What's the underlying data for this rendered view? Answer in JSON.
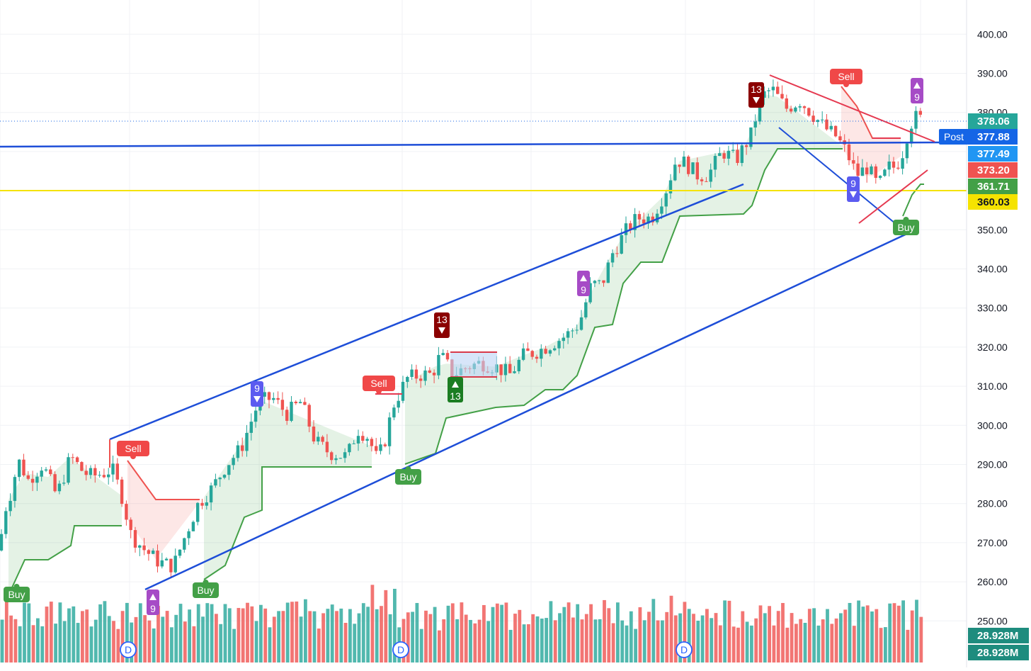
{
  "chart_data": {
    "type": "candlestick",
    "interval_label": "D",
    "colors": {
      "up": "#26a69a",
      "down": "#ef5350",
      "channel": "#1e4ed8",
      "support": "#f5e300",
      "trail_bull": "#43a047",
      "trail_bear": "#ef5350",
      "buy_label": "#43a047",
      "sell_label": "#f04848",
      "td9_up": "#5b5bf0",
      "td9_down": "#a64bc6",
      "td13_dark": "#8b0000",
      "td13_green": "#1b7d22"
    },
    "y_axis": {
      "ticks": [
        250,
        260,
        270,
        280,
        290,
        300,
        310,
        320,
        330,
        340,
        350,
        360,
        370,
        380,
        390,
        400
      ],
      "ylim": [
        246,
        406
      ]
    },
    "price_tags": [
      {
        "text": "378.06",
        "value": 378.06,
        "color": "#26a69a"
      },
      {
        "text": "377.88",
        "value": 377.88,
        "color": "#1565e6"
      },
      {
        "text": "377.49",
        "value": 377.49,
        "color": "#2196f3"
      },
      {
        "text": "373.20",
        "value": 373.2,
        "color": "#ef5350"
      },
      {
        "text": "361.71",
        "value": 361.71,
        "color": "#43a047"
      },
      {
        "text": "360.03",
        "value": 360.03,
        "color": "#f5e300"
      }
    ],
    "post_label": "Post",
    "volume_tags": [
      "28.928M",
      "28.928M"
    ],
    "markers": [
      {
        "text": "Buy",
        "kind": "buy"
      },
      {
        "text": "Sell",
        "kind": "sell"
      },
      {
        "text": "9",
        "kind": "td9-down"
      },
      {
        "text": "Buy",
        "kind": "buy"
      },
      {
        "text": "9",
        "kind": "td9-up"
      },
      {
        "text": "Sell",
        "kind": "sell"
      },
      {
        "text": "Buy",
        "kind": "buy"
      },
      {
        "text": "13",
        "kind": "td13-up"
      },
      {
        "text": "13",
        "kind": "td13-down"
      },
      {
        "text": "9",
        "kind": "td9-up"
      },
      {
        "text": "13",
        "kind": "td13-down"
      },
      {
        "text": "Sell",
        "kind": "sell"
      },
      {
        "text": "9",
        "kind": "td9-down"
      },
      {
        "text": "Buy",
        "kind": "buy"
      },
      {
        "text": "9",
        "kind": "td9-up"
      }
    ],
    "dividends": [
      "D",
      "D",
      "D"
    ]
  }
}
